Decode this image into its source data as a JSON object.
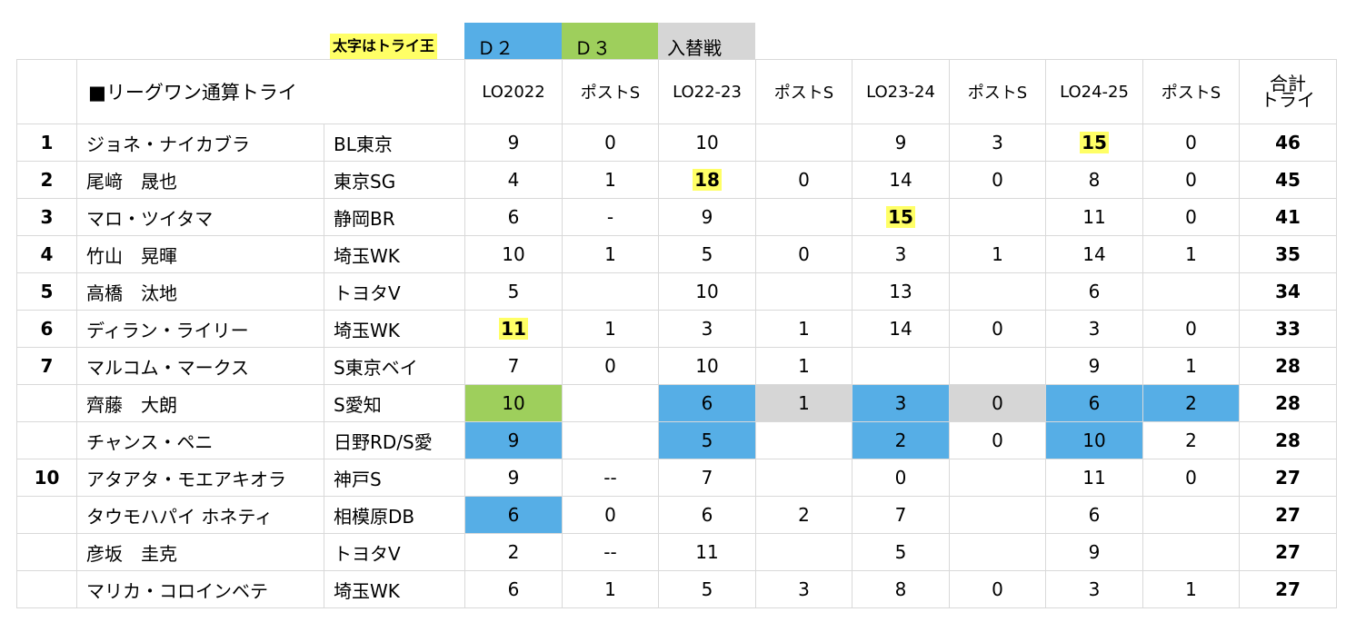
{
  "legend": {
    "note": "太字はトライ王",
    "d2": "Ｄ２",
    "d3": "Ｄ３",
    "replacement": "入替戦",
    "colors": {
      "d2": "#56aee6",
      "d3": "#9ecf5c",
      "replacement": "#d6d6d6",
      "highlight": "#ffff66"
    }
  },
  "header": {
    "title": "■リーグワン通算トライ",
    "seasons": [
      "LO2022",
      "ポストS",
      "LO22-23",
      "ポストS",
      "LO23-24",
      "ポストS",
      "LO24-25",
      "ポストS"
    ],
    "total_line1": "合計",
    "total_line2": "トライ"
  },
  "rows": [
    {
      "rank": "1",
      "name": "ジョネ・ナイカブラ",
      "team": "BL東京",
      "cells": [
        "9",
        "0",
        "10",
        "",
        "9",
        "3",
        "15",
        "0"
      ],
      "total": "46"
    },
    {
      "rank": "2",
      "name": "尾﨑　晟也",
      "team": "東京SG",
      "cells": [
        "4",
        "1",
        "18",
        "0",
        "14",
        "0",
        "8",
        "0"
      ],
      "total": "45"
    },
    {
      "rank": "3",
      "name": "マロ・ツイタマ",
      "team": "静岡BR",
      "cells": [
        "6",
        "-",
        "9",
        "",
        "15",
        "",
        "11",
        "0"
      ],
      "total": "41"
    },
    {
      "rank": "4",
      "name": "竹山　晃暉",
      "team": "埼玉WK",
      "cells": [
        "10",
        "1",
        "5",
        "0",
        "3",
        "1",
        "14",
        "1"
      ],
      "total": "35"
    },
    {
      "rank": "5",
      "name": "高橋　汰地",
      "team": "トヨタV",
      "cells": [
        "5",
        "",
        "10",
        "",
        "13",
        "",
        "6",
        ""
      ],
      "total": "34"
    },
    {
      "rank": "6",
      "name": "ディラン・ライリー",
      "team": "埼玉WK",
      "cells": [
        "11",
        "1",
        "3",
        "1",
        "14",
        "0",
        "3",
        "0"
      ],
      "total": "33"
    },
    {
      "rank": "7",
      "name": "マルコム・マークス",
      "team": "S東京ベイ",
      "cells": [
        "7",
        "0",
        "10",
        "1",
        "",
        "",
        "9",
        "1"
      ],
      "total": "28"
    },
    {
      "rank": "",
      "name": "齊藤　大朗",
      "team": "S愛知",
      "cells": [
        "10",
        "",
        "6",
        "1",
        "3",
        "0",
        "6",
        "2"
      ],
      "total": "28"
    },
    {
      "rank": "",
      "name": "チャンス・ペニ",
      "team": "日野RD/S愛",
      "cells": [
        "9",
        "",
        "5",
        "",
        "2",
        "0",
        "10",
        "2"
      ],
      "total": "28"
    },
    {
      "rank": "10",
      "name": "アタアタ・モエアキオラ",
      "team": "神戸S",
      "cells": [
        "9",
        "--",
        "7",
        "",
        "0",
        "",
        "11",
        "0"
      ],
      "total": "27"
    },
    {
      "rank": "",
      "name": "タウモハパイ ホネティ",
      "team": "相模原DB",
      "cells": [
        "6",
        "0",
        "6",
        "2",
        "7",
        "",
        "6",
        ""
      ],
      "total": "27"
    },
    {
      "rank": "",
      "name": "彦坂　圭克",
      "team": "トヨタV",
      "cells": [
        "2",
        "--",
        "11",
        "",
        "5",
        "",
        "9",
        ""
      ],
      "total": "27"
    },
    {
      "rank": "",
      "name": "マリカ・コロインベテ",
      "team": "埼玉WK",
      "cells": [
        "6",
        "1",
        "5",
        "3",
        "8",
        "0",
        "3",
        "1"
      ],
      "total": "27"
    }
  ],
  "highlights": [
    {
      "row": 0,
      "col": 6
    },
    {
      "row": 1,
      "col": 2
    },
    {
      "row": 2,
      "col": 4
    },
    {
      "row": 5,
      "col": 0
    }
  ],
  "cell_styles": [
    {
      "row": 7,
      "col": 0,
      "style": "d3"
    },
    {
      "row": 7,
      "col": 2,
      "style": "d2"
    },
    {
      "row": 7,
      "col": 3,
      "style": "rep"
    },
    {
      "row": 7,
      "col": 4,
      "style": "d2"
    },
    {
      "row": 7,
      "col": 5,
      "style": "rep"
    },
    {
      "row": 7,
      "col": 6,
      "style": "d2"
    },
    {
      "row": 7,
      "col": 7,
      "style": "d2"
    },
    {
      "row": 8,
      "col": 0,
      "style": "d2"
    },
    {
      "row": 8,
      "col": 2,
      "style": "d2"
    },
    {
      "row": 8,
      "col": 4,
      "style": "d2"
    },
    {
      "row": 8,
      "col": 6,
      "style": "d2"
    },
    {
      "row": 10,
      "col": 0,
      "style": "d2"
    }
  ]
}
